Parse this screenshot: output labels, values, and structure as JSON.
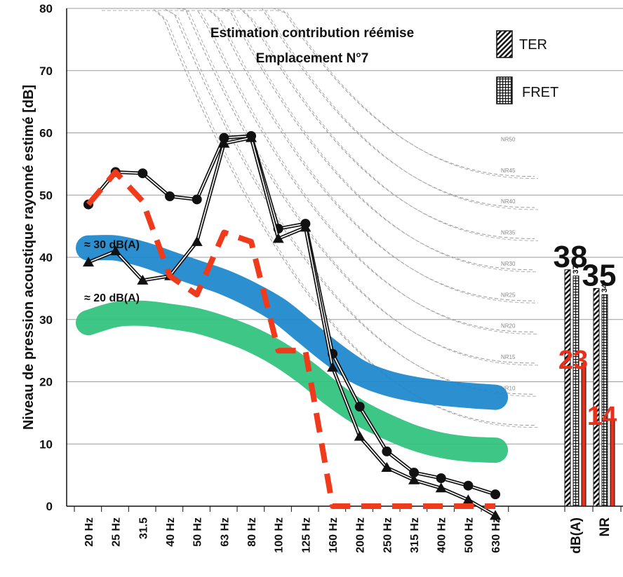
{
  "chart_data": {
    "type": "line",
    "title_lines": [
      "Estimation contribution réémise",
      "Emplacement N°7"
    ],
    "ylabel": "Niveau de pression acoustique rayonné estimé [dB]",
    "ylim": [
      0,
      80
    ],
    "y_ticks": [
      0,
      10,
      20,
      30,
      40,
      50,
      60,
      70,
      80
    ],
    "grid": true,
    "legend_position": "top-right",
    "categories": [
      "20 Hz",
      "25 Hz",
      "31.5",
      "40 Hz",
      "50 Hz",
      "63 Hz",
      "80 Hz",
      "100 Hz",
      "125 Hz",
      "160 Hz",
      "200 Hz",
      "250 Hz",
      "315 Hz",
      "400 Hz",
      "500 Hz",
      "630 Hz"
    ],
    "series": [
      {
        "legend": "TER",
        "marker": "circle",
        "values": [
          48.5,
          53.7,
          53.5,
          49.8,
          49.3,
          59.2,
          59.5,
          44.6,
          45.4,
          24.5,
          16,
          8.8,
          5.4,
          4.5,
          3.3,
          1.9
        ]
      },
      {
        "legend": "FRET",
        "marker": "triangle",
        "values": [
          39.2,
          41,
          36.3,
          37,
          42.5,
          58.3,
          59.2,
          43,
          44.8,
          22.3,
          11.2,
          6.2,
          4.2,
          2.9,
          1,
          -1.5
        ]
      },
      {
        "style": "red-dashed",
        "values": [
          48.5,
          53.7,
          49,
          37,
          34,
          44,
          42.5,
          25,
          25,
          0,
          0,
          0,
          0,
          0,
          0,
          0
        ]
      }
    ],
    "bands": [
      {
        "label": "≈ 30 dB(A)",
        "color": "#1b86cc",
        "values": [
          41.5,
          41.5,
          40.5,
          39,
          37.5,
          36,
          34,
          31.5,
          28,
          24.5,
          21.5,
          19.8,
          18.8,
          18.2,
          17.8,
          17.5
        ]
      },
      {
        "label": "≈ 20 dB(A)",
        "color": "#2fc27d",
        "values": [
          29.5,
          30.8,
          31,
          30.5,
          29.8,
          28.5,
          26.8,
          24.5,
          21.5,
          18,
          15,
          12.8,
          11,
          9.8,
          9.2,
          9
        ]
      }
    ],
    "nr_curves": {
      "labels": [
        "NR10",
        "NR15",
        "NR20",
        "NR25",
        "NR30",
        "NR35",
        "NR40",
        "NR45",
        "NR50"
      ],
      "values_at_630": [
        13,
        18,
        23,
        28,
        33,
        38,
        43,
        48,
        53
      ]
    },
    "summary": {
      "categories": [
        "dB(A)",
        "NR"
      ],
      "ter": [
        38,
        35
      ],
      "fret": [
        37,
        34
      ],
      "red": [
        23,
        14
      ]
    }
  }
}
